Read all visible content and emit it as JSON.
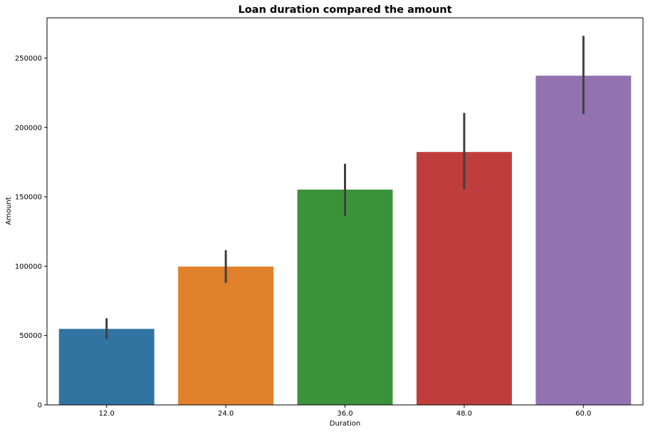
{
  "chart_data": {
    "type": "bar",
    "title": "Loan duration compared the amount",
    "xlabel": "Duration",
    "ylabel": "Amount",
    "categories": [
      "12.0",
      "24.0",
      "36.0",
      "48.0",
      "60.0"
    ],
    "values": [
      54800,
      99700,
      155200,
      182300,
      237300
    ],
    "error_low": [
      47500,
      88000,
      136000,
      155500,
      209500
    ],
    "error_high": [
      62500,
      111500,
      173800,
      210500,
      266000
    ],
    "colors": [
      "#3274a1",
      "#e1812c",
      "#3a923a",
      "#c03d3e",
      "#9372b2"
    ],
    "yticks": [
      0,
      50000,
      100000,
      150000,
      200000,
      250000
    ],
    "ytick_labels": [
      "0",
      "50000",
      "100000",
      "150000",
      "200000",
      "250000"
    ],
    "ylim": [
      0,
      279000
    ],
    "grid": false,
    "legend": false
  }
}
